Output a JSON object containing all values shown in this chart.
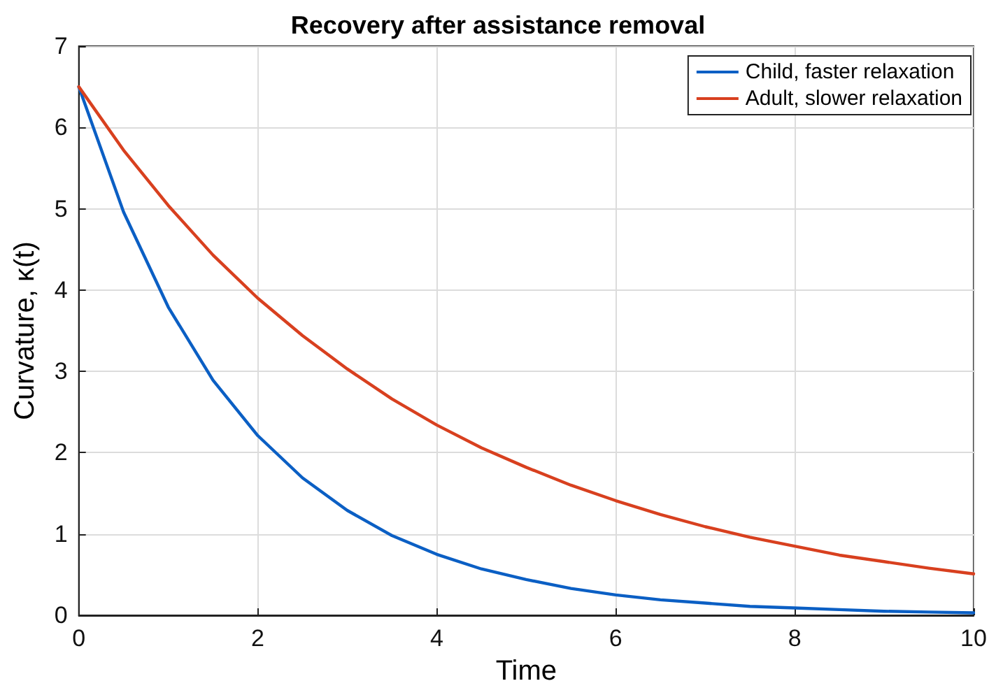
{
  "chart_data": {
    "type": "line",
    "title": "Recovery after assistance removal",
    "xlabel": "Time",
    "ylabel": "Curvature, κ(t)",
    "x": [
      0,
      0.5,
      1,
      1.5,
      2,
      2.5,
      3,
      3.5,
      4,
      4.5,
      5,
      5.5,
      6,
      6.5,
      7,
      7.5,
      8,
      8.5,
      9,
      9.5,
      10
    ],
    "series": [
      {
        "name": "Child, faster relaxation",
        "color": "#0b5fc4",
        "values": [
          6.5,
          4.96,
          3.79,
          2.89,
          2.21,
          1.69,
          1.29,
          0.98,
          0.75,
          0.57,
          0.44,
          0.33,
          0.25,
          0.19,
          0.15,
          0.11,
          0.09,
          0.07,
          0.05,
          0.04,
          0.03
        ]
      },
      {
        "name": "Adult, slower relaxation",
        "color": "#d8401f",
        "values": [
          6.5,
          5.72,
          5.04,
          4.43,
          3.9,
          3.44,
          3.03,
          2.66,
          2.34,
          2.06,
          1.82,
          1.6,
          1.41,
          1.24,
          1.09,
          0.96,
          0.85,
          0.74,
          0.66,
          0.58,
          0.51
        ]
      }
    ],
    "xlim": [
      0,
      10
    ],
    "xticks": [
      0,
      2,
      4,
      6,
      8,
      10
    ],
    "ylim": [
      0,
      7
    ],
    "yticks": [
      0,
      1,
      2,
      3,
      4,
      5,
      6,
      7
    ],
    "grid": true,
    "legend": "top right",
    "marker": "none",
    "line_style": "solid"
  }
}
